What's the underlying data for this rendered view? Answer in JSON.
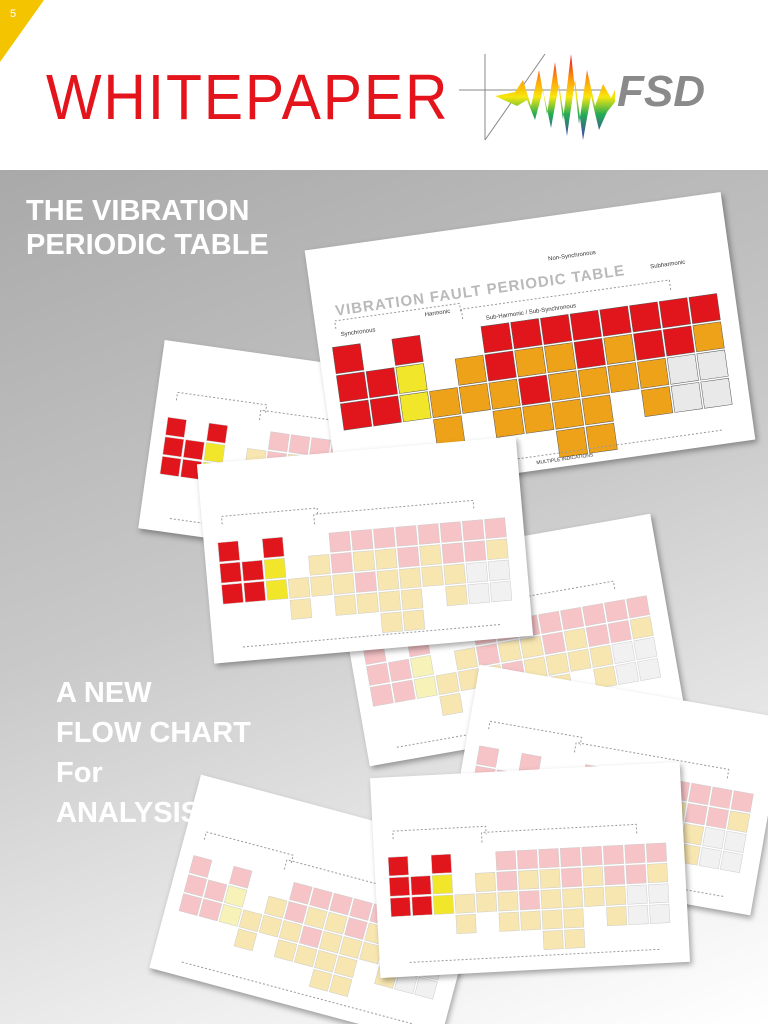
{
  "page_number": "5",
  "header": {
    "title": "WHITEPAPER",
    "logo_text": "FSD"
  },
  "cover": {
    "headline": [
      "THE VIBRATION",
      "PERIODIC TABLE"
    ],
    "subtitle": [
      "A NEW",
      "FLOW CHART",
      "For",
      "ANALYSIS"
    ]
  },
  "main_card": {
    "title": "VIBRATION FAULT PERIODIC TABLE",
    "labels": [
      "Synchronous",
      "Harmonic",
      "Non-Synchronous",
      "Sub-Harmonic / Sub-Synchronous",
      "Subharmonic"
    ],
    "legend": "MULTIPLE INDICATIONS"
  }
}
